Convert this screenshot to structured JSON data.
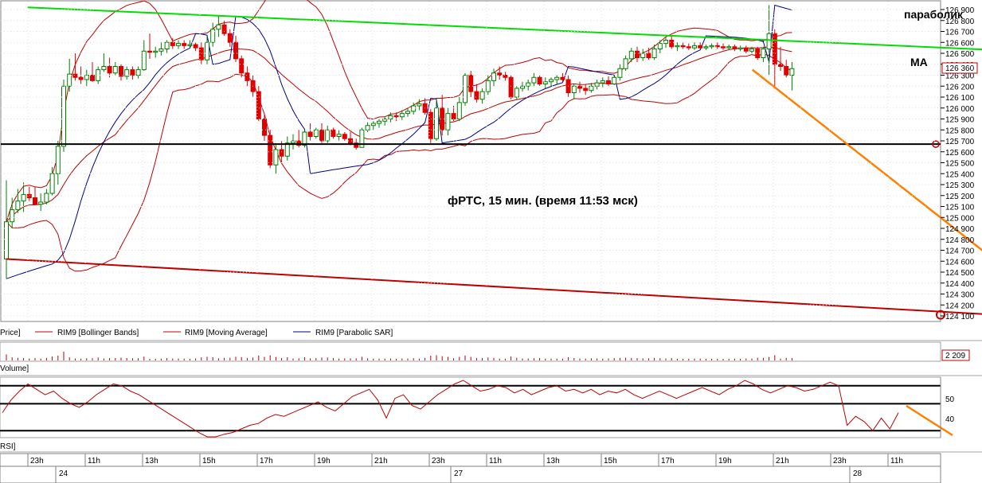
{
  "chart_data": {
    "type": "candlestick",
    "title": "фРТС,  15 мин.  (время 11:53 мск)",
    "price_axis": {
      "ylim": [
        124050,
        126940
      ],
      "ticks": [
        "126 900",
        "126 800",
        "126 700",
        "126 600",
        "126 500",
        "126 400",
        "126 300",
        "126 200",
        "126 100",
        "126 000",
        "125 900",
        "125 800",
        "125 700",
        "125 600",
        "125 500",
        "125 400",
        "125 300",
        "125 200",
        "125 100",
        "125 000",
        "124 900",
        "124 800",
        "124 700",
        "124 600",
        "124 500",
        "124 400",
        "124 300",
        "124 200",
        "124 100"
      ],
      "current_price_label": "126 360"
    },
    "legend": {
      "items": [
        "Price]",
        "RIM9 [Bollinger Bands]",
        "RIM9 [Moving Average]",
        "RIM9 [Parabolic SAR]"
      ],
      "colors": [
        "#000000",
        "#c00000",
        "#c00000",
        "#00008b"
      ]
    },
    "volume": {
      "label": "Volume]",
      "value_label": "2 209"
    },
    "rsi": {
      "label": "RSI]",
      "ticks": [
        "50",
        "40"
      ],
      "levels": [
        60,
        50,
        35
      ],
      "ylim": [
        32,
        63
      ]
    },
    "time_axis": {
      "hours": [
        "23h",
        "11h",
        "13h",
        "15h",
        "17h",
        "19h",
        "21h",
        "23h",
        "11h",
        "13h",
        "15h",
        "17h",
        "19h",
        "21h",
        "23h",
        "11h"
      ],
      "days": [
        "24",
        "27",
        "28"
      ]
    },
    "annotations": {
      "sar": "параболик",
      "ma": "MA"
    },
    "trendlines": [
      {
        "name": "resistance",
        "color": "#00dd00",
        "from": [
          3.7,
          126920
        ],
        "to": [
          172.6,
          126530
        ]
      },
      {
        "name": "support",
        "color": "#c00000",
        "from": [
          0,
          124620
        ],
        "to": [
          172.6,
          124110
        ]
      }
    ],
    "horizontal_levels": [
      125670
    ],
    "forecast": {
      "color": "#ff8000",
      "from": [
        130.1,
        126350
      ],
      "to": [
        172.6,
        124600
      ]
    },
    "candles": [
      {
        "o": 124620,
        "h": 125340,
        "l": 124440,
        "c": 124960
      },
      {
        "o": 124960,
        "h": 125180,
        "l": 124900,
        "c": 125070
      },
      {
        "o": 125070,
        "h": 125260,
        "l": 125040,
        "c": 125150
      },
      {
        "o": 125150,
        "h": 125320,
        "l": 125050,
        "c": 125210
      },
      {
        "o": 125210,
        "h": 125280,
        "l": 125150,
        "c": 125180
      },
      {
        "o": 125180,
        "h": 125280,
        "l": 125110,
        "c": 125120
      },
      {
        "o": 125120,
        "h": 125220,
        "l": 125060,
        "c": 125140
      },
      {
        "o": 125140,
        "h": 125260,
        "l": 125120,
        "c": 125220
      },
      {
        "o": 125220,
        "h": 125460,
        "l": 125200,
        "c": 125400
      },
      {
        "o": 125400,
        "h": 125700,
        "l": 125300,
        "c": 125650
      },
      {
        "o": 125650,
        "h": 126260,
        "l": 125600,
        "c": 126200
      },
      {
        "o": 126200,
        "h": 126450,
        "l": 126150,
        "c": 126310
      },
      {
        "o": 126310,
        "h": 126500,
        "l": 126250,
        "c": 126280
      },
      {
        "o": 126280,
        "h": 126380,
        "l": 126220,
        "c": 126260
      },
      {
        "o": 126260,
        "h": 126350,
        "l": 126200,
        "c": 126300
      },
      {
        "o": 126300,
        "h": 126420,
        "l": 126240,
        "c": 126250
      },
      {
        "o": 126250,
        "h": 126380,
        "l": 126220,
        "c": 126350
      },
      {
        "o": 126350,
        "h": 126500,
        "l": 126330,
        "c": 126380
      },
      {
        "o": 126380,
        "h": 126460,
        "l": 126280,
        "c": 126320
      },
      {
        "o": 126320,
        "h": 126420,
        "l": 126300,
        "c": 126380
      },
      {
        "o": 126380,
        "h": 126400,
        "l": 126250,
        "c": 126290
      },
      {
        "o": 126290,
        "h": 126380,
        "l": 126260,
        "c": 126350
      },
      {
        "o": 126350,
        "h": 126380,
        "l": 126260,
        "c": 126300
      },
      {
        "o": 126300,
        "h": 126380,
        "l": 126270,
        "c": 126350
      },
      {
        "o": 126350,
        "h": 126620,
        "l": 126340,
        "c": 126520
      },
      {
        "o": 126520,
        "h": 126680,
        "l": 126450,
        "c": 126510
      },
      {
        "o": 126510,
        "h": 126560,
        "l": 126460,
        "c": 126520
      },
      {
        "o": 126520,
        "h": 126600,
        "l": 126480,
        "c": 126540
      },
      {
        "o": 126540,
        "h": 126620,
        "l": 126500,
        "c": 126600
      },
      {
        "o": 126600,
        "h": 126640,
        "l": 126540,
        "c": 126570
      },
      {
        "o": 126570,
        "h": 126620,
        "l": 126540,
        "c": 126590
      },
      {
        "o": 126590,
        "h": 126620,
        "l": 126540,
        "c": 126570
      },
      {
        "o": 126570,
        "h": 126620,
        "l": 126550,
        "c": 126580
      },
      {
        "o": 126580,
        "h": 126600,
        "l": 126520,
        "c": 126550
      },
      {
        "o": 126550,
        "h": 126600,
        "l": 126400,
        "c": 126440
      },
      {
        "o": 126440,
        "h": 126660,
        "l": 126400,
        "c": 126600
      },
      {
        "o": 126600,
        "h": 126780,
        "l": 126560,
        "c": 126720
      },
      {
        "o": 126720,
        "h": 126840,
        "l": 126650,
        "c": 126760
      },
      {
        "o": 126760,
        "h": 126800,
        "l": 126660,
        "c": 126680
      },
      {
        "o": 126680,
        "h": 126720,
        "l": 126560,
        "c": 126600
      },
      {
        "o": 126600,
        "h": 126660,
        "l": 126420,
        "c": 126450
      },
      {
        "o": 126450,
        "h": 126480,
        "l": 126280,
        "c": 126320
      },
      {
        "o": 126320,
        "h": 126380,
        "l": 126200,
        "c": 126250
      },
      {
        "o": 126250,
        "h": 126300,
        "l": 126100,
        "c": 126150
      },
      {
        "o": 126150,
        "h": 126200,
        "l": 125880,
        "c": 125900
      },
      {
        "o": 125900,
        "h": 125950,
        "l": 125700,
        "c": 125750
      },
      {
        "o": 125750,
        "h": 125800,
        "l": 125450,
        "c": 125480
      },
      {
        "o": 125480,
        "h": 125680,
        "l": 125400,
        "c": 125620
      },
      {
        "o": 125620,
        "h": 125700,
        "l": 125500,
        "c": 125560
      },
      {
        "o": 125560,
        "h": 125740,
        "l": 125520,
        "c": 125680
      },
      {
        "o": 125680,
        "h": 125760,
        "l": 125620,
        "c": 125700
      },
      {
        "o": 125700,
        "h": 125800,
        "l": 125640,
        "c": 125660
      },
      {
        "o": 125660,
        "h": 125800,
        "l": 125640,
        "c": 125780
      },
      {
        "o": 125780,
        "h": 125860,
        "l": 125700,
        "c": 125740
      },
      {
        "o": 125740,
        "h": 125820,
        "l": 125720,
        "c": 125800
      },
      {
        "o": 125800,
        "h": 125860,
        "l": 125680,
        "c": 125700
      },
      {
        "o": 125700,
        "h": 125840,
        "l": 125680,
        "c": 125800
      },
      {
        "o": 125800,
        "h": 125820,
        "l": 125720,
        "c": 125740
      },
      {
        "o": 125740,
        "h": 125800,
        "l": 125700,
        "c": 125760
      },
      {
        "o": 125760,
        "h": 125780,
        "l": 125700,
        "c": 125720
      },
      {
        "o": 125720,
        "h": 125780,
        "l": 125660,
        "c": 125680
      },
      {
        "o": 125680,
        "h": 125720,
        "l": 125620,
        "c": 125640
      },
      {
        "o": 125640,
        "h": 125820,
        "l": 125640,
        "c": 125800
      },
      {
        "o": 125800,
        "h": 125870,
        "l": 125780,
        "c": 125840
      },
      {
        "o": 125840,
        "h": 125880,
        "l": 125800,
        "c": 125860
      },
      {
        "o": 125860,
        "h": 125900,
        "l": 125820,
        "c": 125880
      },
      {
        "o": 125880,
        "h": 125920,
        "l": 125840,
        "c": 125900
      },
      {
        "o": 125900,
        "h": 125960,
        "l": 125870,
        "c": 125930
      },
      {
        "o": 125930,
        "h": 125960,
        "l": 125880,
        "c": 125920
      },
      {
        "o": 125920,
        "h": 125980,
        "l": 125890,
        "c": 125950
      },
      {
        "o": 125950,
        "h": 126000,
        "l": 125920,
        "c": 125970
      },
      {
        "o": 125970,
        "h": 126050,
        "l": 125940,
        "c": 126020
      },
      {
        "o": 126020,
        "h": 126080,
        "l": 125980,
        "c": 126040
      },
      {
        "o": 126040,
        "h": 126090,
        "l": 125940,
        "c": 125960
      },
      {
        "o": 125960,
        "h": 125990,
        "l": 125680,
        "c": 125720
      },
      {
        "o": 125720,
        "h": 126080,
        "l": 125700,
        "c": 126000
      },
      {
        "o": 126000,
        "h": 126120,
        "l": 125750,
        "c": 125800
      },
      {
        "o": 125800,
        "h": 126000,
        "l": 125750,
        "c": 125950
      },
      {
        "o": 125950,
        "h": 126020,
        "l": 125880,
        "c": 125900
      },
      {
        "o": 125900,
        "h": 126100,
        "l": 125880,
        "c": 126050
      },
      {
        "o": 126050,
        "h": 126320,
        "l": 126020,
        "c": 126300
      },
      {
        "o": 126300,
        "h": 126340,
        "l": 126100,
        "c": 126150
      },
      {
        "o": 126150,
        "h": 126220,
        "l": 126050,
        "c": 126080
      },
      {
        "o": 126080,
        "h": 126180,
        "l": 126040,
        "c": 126150
      },
      {
        "o": 126150,
        "h": 126300,
        "l": 126120,
        "c": 126250
      },
      {
        "o": 126250,
        "h": 126360,
        "l": 126200,
        "c": 126320
      },
      {
        "o": 126320,
        "h": 126380,
        "l": 126260,
        "c": 126300
      },
      {
        "o": 126300,
        "h": 126330,
        "l": 126250,
        "c": 126280
      },
      {
        "o": 126280,
        "h": 126300,
        "l": 126080,
        "c": 126100
      },
      {
        "o": 126100,
        "h": 126200,
        "l": 126080,
        "c": 126180
      },
      {
        "o": 126180,
        "h": 126240,
        "l": 126150,
        "c": 126200
      },
      {
        "o": 126200,
        "h": 126260,
        "l": 126160,
        "c": 126230
      },
      {
        "o": 126230,
        "h": 126320,
        "l": 126200,
        "c": 126280
      },
      {
        "o": 126280,
        "h": 126300,
        "l": 126200,
        "c": 126220
      },
      {
        "o": 126220,
        "h": 126280,
        "l": 126180,
        "c": 126240
      },
      {
        "o": 126240,
        "h": 126280,
        "l": 126200,
        "c": 126260
      },
      {
        "o": 126260,
        "h": 126300,
        "l": 126220,
        "c": 126280
      },
      {
        "o": 126280,
        "h": 126320,
        "l": 126240,
        "c": 126260
      },
      {
        "o": 126260,
        "h": 126300,
        "l": 126100,
        "c": 126140
      },
      {
        "o": 126140,
        "h": 126220,
        "l": 126080,
        "c": 126200
      },
      {
        "o": 126200,
        "h": 126240,
        "l": 126140,
        "c": 126180
      },
      {
        "o": 126180,
        "h": 126220,
        "l": 126120,
        "c": 126160
      },
      {
        "o": 126160,
        "h": 126230,
        "l": 126140,
        "c": 126200
      },
      {
        "o": 126200,
        "h": 126260,
        "l": 126170,
        "c": 126230
      },
      {
        "o": 126230,
        "h": 126280,
        "l": 126190,
        "c": 126250
      },
      {
        "o": 126250,
        "h": 126290,
        "l": 126200,
        "c": 126220
      },
      {
        "o": 126220,
        "h": 126300,
        "l": 126210,
        "c": 126280
      },
      {
        "o": 126280,
        "h": 126400,
        "l": 126250,
        "c": 126360
      },
      {
        "o": 126360,
        "h": 126480,
        "l": 126340,
        "c": 126450
      },
      {
        "o": 126450,
        "h": 126550,
        "l": 126420,
        "c": 126520
      },
      {
        "o": 126520,
        "h": 126560,
        "l": 126420,
        "c": 126460
      },
      {
        "o": 126460,
        "h": 126540,
        "l": 126430,
        "c": 126500
      },
      {
        "o": 126500,
        "h": 126550,
        "l": 126440,
        "c": 126460
      },
      {
        "o": 126460,
        "h": 126580,
        "l": 126440,
        "c": 126540
      },
      {
        "o": 126540,
        "h": 126620,
        "l": 126500,
        "c": 126590
      },
      {
        "o": 126590,
        "h": 126650,
        "l": 126550,
        "c": 126620
      },
      {
        "o": 126620,
        "h": 126660,
        "l": 126540,
        "c": 126560
      },
      {
        "o": 126560,
        "h": 126600,
        "l": 126520,
        "c": 126570
      },
      {
        "o": 126570,
        "h": 126600,
        "l": 126540,
        "c": 126560
      },
      {
        "o": 126560,
        "h": 126590,
        "l": 126530,
        "c": 126550
      },
      {
        "o": 126550,
        "h": 126600,
        "l": 126530,
        "c": 126570
      },
      {
        "o": 126570,
        "h": 126600,
        "l": 126540,
        "c": 126550
      },
      {
        "o": 126550,
        "h": 126580,
        "l": 126530,
        "c": 126560
      },
      {
        "o": 126560,
        "h": 126590,
        "l": 126540,
        "c": 126570
      },
      {
        "o": 126570,
        "h": 126600,
        "l": 126540,
        "c": 126560
      },
      {
        "o": 126560,
        "h": 126590,
        "l": 126530,
        "c": 126550
      },
      {
        "o": 126550,
        "h": 126580,
        "l": 126530,
        "c": 126560
      },
      {
        "o": 126560,
        "h": 126580,
        "l": 126520,
        "c": 126540
      },
      {
        "o": 126540,
        "h": 126570,
        "l": 126520,
        "c": 126550
      },
      {
        "o": 126550,
        "h": 126570,
        "l": 126500,
        "c": 126520
      },
      {
        "o": 126520,
        "h": 126560,
        "l": 126500,
        "c": 126540
      },
      {
        "o": 126540,
        "h": 126560,
        "l": 126440,
        "c": 126460
      },
      {
        "o": 126460,
        "h": 126560,
        "l": 126420,
        "c": 126540
      },
      {
        "o": 126540,
        "h": 126940,
        "l": 126300,
        "c": 126680
      },
      {
        "o": 126680,
        "h": 126720,
        "l": 126180,
        "c": 126400
      },
      {
        "o": 126400,
        "h": 126560,
        "l": 126340,
        "c": 126380
      },
      {
        "o": 126380,
        "h": 126440,
        "l": 126280,
        "c": 126300
      },
      {
        "o": 126300,
        "h": 126420,
        "l": 126160,
        "c": 126360
      }
    ],
    "rsi_values": [
      45,
      52,
      57,
      61,
      58,
      55,
      57,
      53,
      50,
      48,
      51,
      55,
      58,
      61,
      60,
      57,
      55,
      52,
      49,
      46,
      43,
      40,
      37,
      34,
      30,
      31,
      33,
      34,
      36,
      38,
      39,
      42,
      44,
      43,
      45,
      47,
      49,
      51,
      48,
      46,
      50,
      54,
      56,
      58,
      52,
      42,
      53,
      55,
      49,
      47,
      51,
      55,
      58,
      61,
      63,
      60,
      57,
      58,
      60,
      59,
      56,
      58,
      55,
      57,
      59,
      60,
      57,
      58,
      56,
      58,
      55,
      57,
      56,
      58,
      55,
      53,
      55,
      57,
      55,
      53,
      55,
      57,
      59,
      57,
      55,
      58,
      60,
      63,
      61,
      58,
      56,
      58,
      60,
      59,
      57,
      58,
      60,
      62,
      60,
      38,
      43,
      40,
      35,
      42,
      36,
      45
    ]
  }
}
